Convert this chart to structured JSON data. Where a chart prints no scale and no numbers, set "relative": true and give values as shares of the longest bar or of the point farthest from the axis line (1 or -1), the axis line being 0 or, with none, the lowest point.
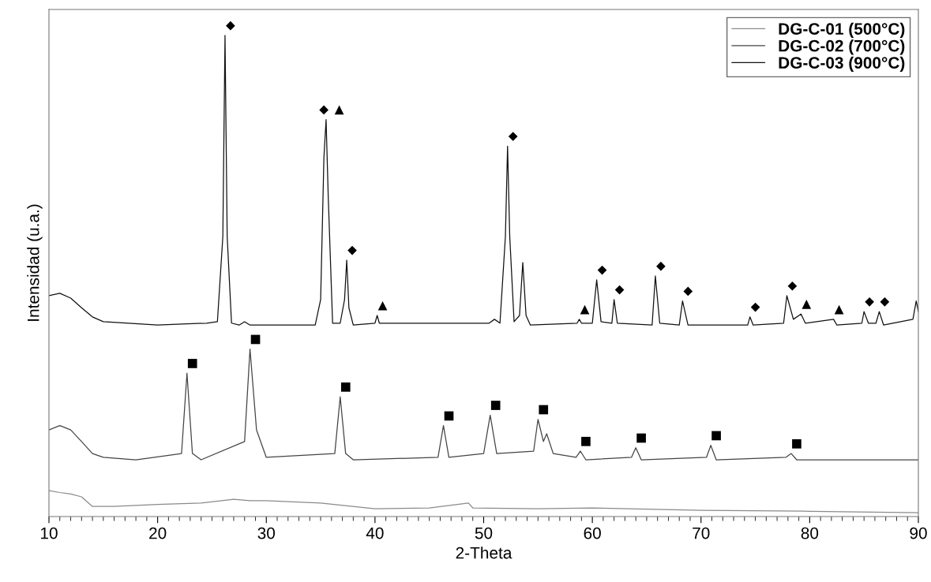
{
  "chart_data": {
    "type": "line",
    "relative": true,
    "xlabel": "2-Theta",
    "ylabel": "Intensidad (u.a.)",
    "xlim": [
      10,
      90
    ],
    "xticks": [
      10,
      20,
      30,
      40,
      50,
      60,
      70,
      80,
      90
    ],
    "legend": "top right",
    "grid": false,
    "marker": "none",
    "line_style": "solid",
    "series": [
      {
        "name": "DG-C-01 (500°C)",
        "color": "#8a8a8a",
        "x": [
          10,
          11,
          12,
          13,
          14,
          16,
          20,
          24,
          27,
          28.5,
          30,
          35,
          40,
          45,
          48.6,
          49,
          55,
          60,
          70,
          80,
          90
        ],
        "values": [
          0.054,
          0.05,
          0.047,
          0.041,
          0.021,
          0.021,
          0.025,
          0.028,
          0.036,
          0.033,
          0.033,
          0.028,
          0.016,
          0.018,
          0.028,
          0.018,
          0.016,
          0.018,
          0.013,
          0.011,
          0.008
        ]
      },
      {
        "name": "DG-C-02 (700°C)",
        "color": "#444444",
        "x": [
          10,
          11,
          12,
          13,
          14,
          15,
          18,
          22.2,
          22.7,
          23.2,
          24,
          28,
          28.5,
          29.1,
          30,
          36.3,
          36.8,
          37.3,
          38,
          45.8,
          46.3,
          46.8,
          50,
          50.6,
          51.2,
          54.6,
          55.0,
          55.5,
          55.8,
          56.4,
          58.5,
          58.9,
          59.4,
          63.6,
          64.0,
          64.5,
          70.5,
          70.9,
          71.4,
          77.8,
          78.3,
          78.8,
          90
        ],
        "values": [
          0.18,
          0.189,
          0.18,
          0.156,
          0.131,
          0.123,
          0.118,
          0.131,
          0.298,
          0.131,
          0.118,
          0.156,
          0.348,
          0.18,
          0.123,
          0.131,
          0.249,
          0.131,
          0.118,
          0.123,
          0.189,
          0.123,
          0.131,
          0.211,
          0.131,
          0.136,
          0.202,
          0.156,
          0.172,
          0.131,
          0.123,
          0.136,
          0.118,
          0.123,
          0.143,
          0.118,
          0.123,
          0.148,
          0.118,
          0.123,
          0.131,
          0.118,
          0.118
        ]
      },
      {
        "name": "DG-C-03 (900°C)",
        "color": "#111111",
        "x": [
          10,
          11,
          12,
          13,
          14,
          15,
          20,
          24.5,
          25.5,
          26.0,
          26.2,
          26.4,
          26.8,
          27.5,
          28,
          28.5,
          34.5,
          35.0,
          35.3,
          35.5,
          35.7,
          36.1,
          36.8,
          37.2,
          37.4,
          37.6,
          38,
          40.0,
          40.2,
          40.4,
          50.5,
          51,
          51.5,
          52,
          52.2,
          52.4,
          52.8,
          53.3,
          53.6,
          53.9,
          54.3,
          58.6,
          58.8,
          59,
          60.0,
          60.4,
          60.8,
          61.8,
          62.0,
          62.3,
          65.5,
          65.8,
          66.2,
          68.0,
          68.3,
          68.8,
          74.3,
          74.5,
          74.8,
          77.6,
          77.9,
          78.5,
          79.2,
          79.6,
          82.2,
          82.5,
          84.8,
          85.0,
          85.4,
          86.1,
          86.4,
          86.8,
          89.5,
          89.8,
          90
        ],
        "values": [
          0.459,
          0.464,
          0.454,
          0.434,
          0.415,
          0.405,
          0.398,
          0.402,
          0.405,
          0.582,
          1,
          0.582,
          0.402,
          0.398,
          0.405,
          0.398,
          0.398,
          0.451,
          0.746,
          0.825,
          0.664,
          0.402,
          0.402,
          0.451,
          0.533,
          0.434,
          0.398,
          0.402,
          0.418,
          0.402,
          0.402,
          0.41,
          0.402,
          0.582,
          0.77,
          0.582,
          0.405,
          0.418,
          0.528,
          0.418,
          0.398,
          0.402,
          0.41,
          0.402,
          0.402,
          0.492,
          0.405,
          0.402,
          0.451,
          0.402,
          0.398,
          0.5,
          0.402,
          0.398,
          0.448,
          0.398,
          0.398,
          0.415,
          0.398,
          0.402,
          0.459,
          0.41,
          0.421,
          0.402,
          0.41,
          0.398,
          0.402,
          0.426,
          0.402,
          0.402,
          0.426,
          0.398,
          0.41,
          0.448,
          0.426
        ]
      }
    ],
    "annotations": [
      {
        "text": "◆",
        "x": 26.2,
        "y": 1
      },
      {
        "text": "◆",
        "x": 35.5,
        "y": 0.825
      },
      {
        "text": "▲",
        "x": 35.5,
        "y": 0.825
      },
      {
        "text": "◆",
        "x": 37.4,
        "y": 0.533
      },
      {
        "text": "▲",
        "x": 40.2,
        "y": 0.418
      },
      {
        "text": "◆",
        "x": 52.2,
        "y": 0.77
      },
      {
        "text": "▲",
        "x": 58.8,
        "y": 0.41
      },
      {
        "text": "◆",
        "x": 60.4,
        "y": 0.492
      },
      {
        "text": "◆",
        "x": 62.0,
        "y": 0.451
      },
      {
        "text": "◆",
        "x": 65.8,
        "y": 0.5
      },
      {
        "text": "◆",
        "x": 68.3,
        "y": 0.448
      },
      {
        "text": "◆",
        "x": 74.5,
        "y": 0.415
      },
      {
        "text": "◆",
        "x": 77.9,
        "y": 0.459
      },
      {
        "text": "▲",
        "x": 79.2,
        "y": 0.421
      },
      {
        "text": "▲",
        "x": 82.2,
        "y": 0.41
      },
      {
        "text": "◆",
        "x": 85.0,
        "y": 0.426
      },
      {
        "text": "◆",
        "x": 86.4,
        "y": 0.426
      },
      {
        "text": "■",
        "x": 22.7,
        "y": 0.298
      },
      {
        "text": "■",
        "x": 28.5,
        "y": 0.348
      },
      {
        "text": "■",
        "x": 36.8,
        "y": 0.249
      },
      {
        "text": "■",
        "x": 46.3,
        "y": 0.189
      },
      {
        "text": "■",
        "x": 50.6,
        "y": 0.211
      },
      {
        "text": "■",
        "x": 55.0,
        "y": 0.202
      },
      {
        "text": "■",
        "x": 58.9,
        "y": 0.136
      },
      {
        "text": "■",
        "x": 64.0,
        "y": 0.143
      },
      {
        "text": "■",
        "x": 70.9,
        "y": 0.148
      },
      {
        "text": "■",
        "x": 78.3,
        "y": 0.131
      }
    ]
  }
}
